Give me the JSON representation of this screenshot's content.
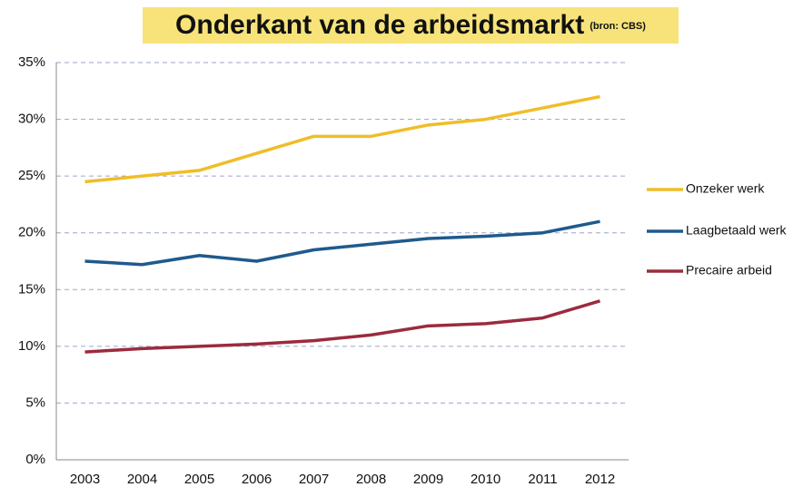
{
  "chart_data": {
    "type": "line",
    "title": "Onderkant van de arbeidsmarkt",
    "subtitle": "(bron: CBS)",
    "categories": [
      "2003",
      "2004",
      "2005",
      "2006",
      "2007",
      "2008",
      "2009",
      "2010",
      "2011",
      "2012"
    ],
    "series": [
      {
        "name": "Onzeker werk",
        "color": "#f0bd28",
        "values": [
          24.5,
          25,
          25.5,
          27,
          28.5,
          28.5,
          29.5,
          30,
          31,
          32
        ]
      },
      {
        "name": "Laagbetaald werk",
        "color": "#1f5a8c",
        "values": [
          17.5,
          17.2,
          18,
          17.5,
          18.5,
          19,
          19.5,
          19.7,
          20,
          21
        ]
      },
      {
        "name": "Precaire arbeid",
        "color": "#9b2b3d",
        "values": [
          9.5,
          9.8,
          10,
          10.2,
          10.5,
          11,
          11.8,
          12,
          12.5,
          14
        ]
      }
    ],
    "ylim": [
      0,
      35
    ],
    "yticks": [
      {
        "value": 0,
        "label": "0%"
      },
      {
        "value": 5,
        "label": "5%"
      },
      {
        "value": 10,
        "label": "10%"
      },
      {
        "value": 15,
        "label": "15%"
      },
      {
        "value": 20,
        "label": "20%"
      },
      {
        "value": 25,
        "label": "25%"
      },
      {
        "value": 30,
        "label": "30%"
      },
      {
        "value": 35,
        "label": "35%"
      }
    ],
    "grid": true,
    "legend": "right"
  }
}
